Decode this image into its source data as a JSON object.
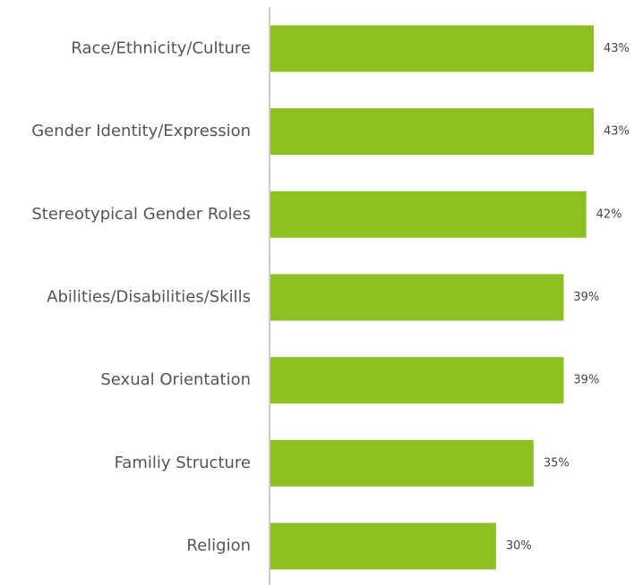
{
  "chart_data": {
    "type": "bar",
    "orientation": "horizontal",
    "categories": [
      "Race/Ethnicity/Culture",
      "Gender Identity/Expression",
      "Stereotypical Gender Roles",
      "Abilities/Disabilities/Skills",
      "Sexual Orientation",
      "Familiy Structure",
      "Religion"
    ],
    "values": [
      43,
      43,
      42,
      39,
      39,
      35,
      30
    ],
    "value_labels": [
      "43%",
      "43%",
      "42%",
      "39%",
      "39%",
      "35%",
      "30%"
    ],
    "color": "#8dc021"
  }
}
